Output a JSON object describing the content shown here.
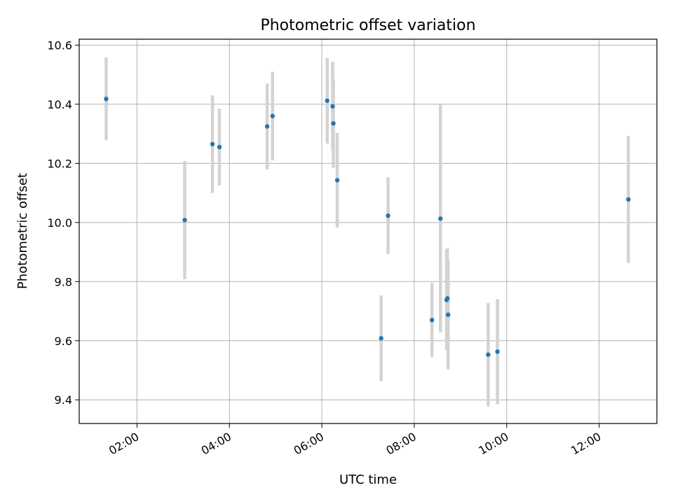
{
  "chart_data": {
    "type": "scatter",
    "title": "Photometric offset variation",
    "xlabel": "UTC time",
    "ylabel": "Photometric offset",
    "x_ticks": [
      "02:00",
      "04:00",
      "06:00",
      "08:00",
      "10:00",
      "12:00"
    ],
    "y_ticks": [
      "9.4",
      "9.6",
      "9.8",
      "10.0",
      "10.2",
      "10.4",
      "10.6"
    ],
    "xlim": [
      "00:45",
      "13:15"
    ],
    "ylim": [
      9.32,
      10.62
    ],
    "grid": true,
    "colors": {
      "points": "#1f77b4",
      "errorbars": "#d3d3d3",
      "grid": "#b0b0b0"
    },
    "points": [
      {
        "x": "01:20",
        "y": 10.418,
        "yerr": 0.14
      },
      {
        "x": "03:02",
        "y": 10.008,
        "yerr": 0.2
      },
      {
        "x": "03:38",
        "y": 10.265,
        "yerr": 0.165
      },
      {
        "x": "03:47",
        "y": 10.255,
        "yerr": 0.13
      },
      {
        "x": "04:49",
        "y": 10.325,
        "yerr": 0.145
      },
      {
        "x": "04:56",
        "y": 10.36,
        "yerr": 0.15
      },
      {
        "x": "06:07",
        "y": 10.412,
        "yerr": 0.145
      },
      {
        "x": "06:14",
        "y": 10.393,
        "yerr": 0.15
      },
      {
        "x": "06:15",
        "y": 10.335,
        "yerr": 0.15
      },
      {
        "x": "06:20",
        "y": 10.143,
        "yerr": 0.16
      },
      {
        "x": "07:17",
        "y": 9.608,
        "yerr": 0.145
      },
      {
        "x": "07:26",
        "y": 10.023,
        "yerr": 0.13
      },
      {
        "x": "08:23",
        "y": 9.67,
        "yerr": 0.125
      },
      {
        "x": "08:34",
        "y": 10.013,
        "yerr": 0.385
      },
      {
        "x": "08:42",
        "y": 9.738,
        "yerr": 0.17
      },
      {
        "x": "08:43",
        "y": 9.743,
        "yerr": 0.17
      },
      {
        "x": "08:44",
        "y": 9.688,
        "yerr": 0.185
      },
      {
        "x": "09:36",
        "y": 9.553,
        "yerr": 0.175
      },
      {
        "x": "09:48",
        "y": 9.563,
        "yerr": 0.178
      },
      {
        "x": "12:38",
        "y": 10.078,
        "yerr": 0.215
      }
    ]
  }
}
